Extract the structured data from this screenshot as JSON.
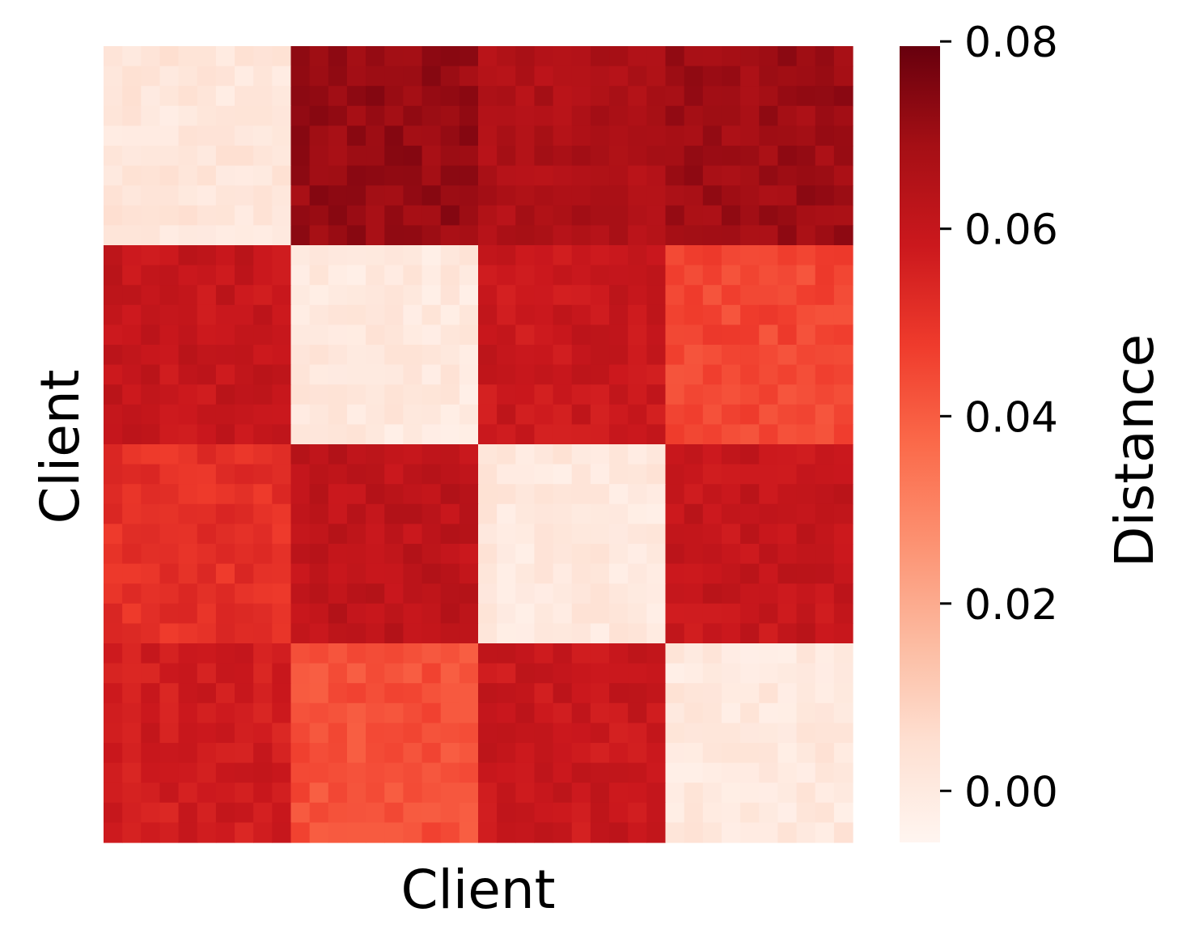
{
  "chart_data": {
    "type": "heatmap",
    "xlabel": "Client",
    "ylabel": "Client",
    "colorbar": {
      "label": "Distance",
      "ticks": [
        0.0,
        0.02,
        0.04,
        0.06,
        0.08
      ],
      "tick_labels": [
        "0.00",
        "0.02",
        "0.04",
        "0.06",
        "0.08"
      ],
      "range": [
        -0.0055,
        0.0795
      ],
      "colormap": "Reds"
    },
    "n_clients": 40,
    "clusters": 4,
    "cluster_size": 10,
    "block_mean_distance": [
      [
        0.002,
        0.071,
        0.066,
        0.07
      ],
      [
        0.06,
        0.001,
        0.059,
        0.045
      ],
      [
        0.051,
        0.062,
        0.001,
        0.06
      ],
      [
        0.057,
        0.043,
        0.059,
        0.001
      ]
    ],
    "cell_variation": 0.0035,
    "xtick_labels": [],
    "ytick_labels": []
  }
}
